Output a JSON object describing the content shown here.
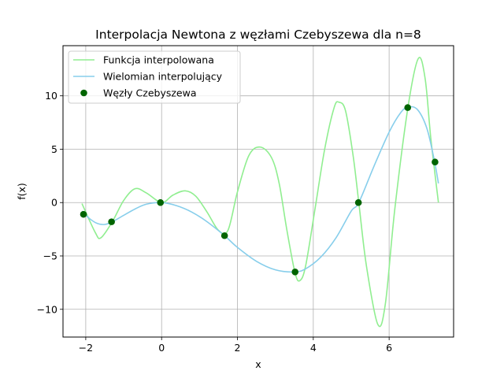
{
  "chart_data": {
    "type": "line",
    "title": "Interpolacja Newtona z węzłami Czebyszewa dla n=8",
    "xlabel": "x",
    "ylabel": "f(x)",
    "xlim": [
      -2.6,
      7.7
    ],
    "ylim": [
      -12.6,
      14.7
    ],
    "xticks": [
      -2,
      0,
      2,
      4,
      6
    ],
    "xtick_labels": [
      "−2",
      "0",
      "2",
      "4",
      "6"
    ],
    "yticks": [
      -10,
      -5,
      0,
      5,
      10
    ],
    "ytick_labels": [
      "−10",
      "−5",
      "0",
      "5",
      "10"
    ],
    "grid": true,
    "legend_position": "upper-left",
    "series": [
      {
        "name": "Funkcja interpolowana",
        "kind": "line",
        "color": "#90ee90",
        "x": [
          -2.1,
          -1.75,
          -1.6,
          -1.3,
          -1.0,
          -0.7,
          -0.4,
          0.0,
          0.3,
          0.62,
          0.9,
          1.2,
          1.5,
          1.75,
          2.0,
          2.3,
          2.6,
          2.9,
          3.1,
          3.3,
          3.52,
          3.65,
          3.8,
          4.05,
          4.3,
          4.55,
          4.68,
          4.85,
          5.05,
          5.2,
          5.4,
          5.7,
          5.9,
          6.15,
          6.5,
          6.77,
          6.95,
          7.1,
          7.3
        ],
        "y": [
          -0.1,
          -2.8,
          -3.3,
          -1.8,
          0.2,
          1.3,
          0.9,
          0.0,
          0.7,
          1.1,
          0.6,
          -0.9,
          -2.6,
          -2.6,
          1.0,
          4.4,
          5.2,
          4.2,
          1.8,
          -2.5,
          -6.6,
          -7.3,
          -5.9,
          -0.5,
          5.0,
          8.9,
          9.4,
          8.6,
          4.4,
          0.0,
          -5.9,
          -11.4,
          -9.5,
          -0.6,
          9.0,
          13.5,
          11.6,
          6.0,
          0.0
        ]
      },
      {
        "name": "Wielomian interpolujący",
        "kind": "line",
        "color": "#87ceeb",
        "x": [
          -2.1,
          -1.9,
          -1.7,
          -1.5,
          -1.3,
          -1.0,
          -0.7,
          -0.4,
          0.0,
          0.4,
          0.8,
          1.2,
          1.66,
          2.0,
          2.5,
          3.0,
          3.5,
          3.8,
          4.2,
          4.6,
          5.0,
          5.2,
          5.6,
          6.0,
          6.3,
          6.5,
          6.75,
          7.0,
          7.2,
          7.3
        ],
        "y": [
          -0.8,
          -1.5,
          -1.95,
          -2.05,
          -1.8,
          -1.2,
          -0.6,
          -0.15,
          0.0,
          -0.3,
          -0.9,
          -1.8,
          -3.1,
          -4.2,
          -5.5,
          -6.3,
          -6.5,
          -6.2,
          -5.1,
          -3.3,
          -0.8,
          0.0,
          3.4,
          6.6,
          8.4,
          8.95,
          8.7,
          6.9,
          3.8,
          1.8
        ]
      },
      {
        "name": "Węzły Czebyszewa",
        "kind": "scatter",
        "color": "#006400",
        "x": [
          -2.06,
          -1.32,
          -0.03,
          1.66,
          3.52,
          5.19,
          6.49,
          7.21
        ],
        "y": [
          -1.1,
          -1.8,
          0.0,
          -3.1,
          -6.5,
          0.0,
          8.9,
          3.8
        ]
      }
    ]
  }
}
